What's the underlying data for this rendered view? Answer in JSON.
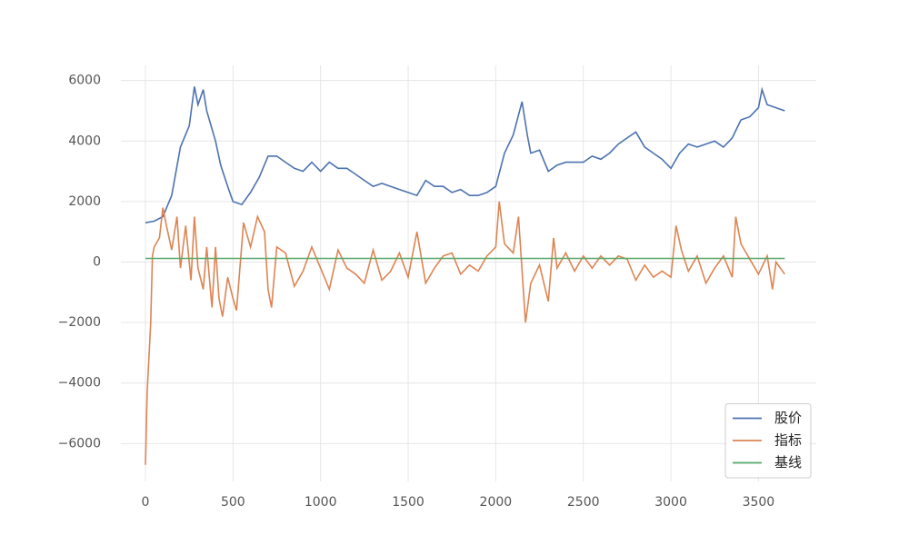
{
  "chart_data": {
    "type": "line",
    "xlim": [
      -140,
      3830
    ],
    "ylim": [
      -7250,
      6500
    ],
    "xticks": [
      0,
      500,
      1000,
      1500,
      2000,
      2500,
      3000,
      3500
    ],
    "yticks": [
      {
        "value": -6000,
        "label": "−6000"
      },
      {
        "value": -4000,
        "label": "−4000"
      },
      {
        "value": -2000,
        "label": "−2000"
      },
      0,
      2000,
      4000,
      6000
    ],
    "grid": true,
    "legend": "lower right",
    "series": [
      {
        "name": "股价",
        "color": "#4c72b0",
        "x": [
          0,
          50,
          100,
          150,
          200,
          250,
          280,
          300,
          330,
          350,
          400,
          430,
          470,
          500,
          550,
          600,
          650,
          700,
          750,
          800,
          850,
          900,
          950,
          1000,
          1050,
          1100,
          1150,
          1200,
          1250,
          1300,
          1350,
          1400,
          1450,
          1500,
          1550,
          1600,
          1650,
          1700,
          1750,
          1800,
          1850,
          1900,
          1950,
          2000,
          2050,
          2100,
          2150,
          2180,
          2200,
          2250,
          2300,
          2350,
          2400,
          2450,
          2500,
          2550,
          2600,
          2650,
          2700,
          2750,
          2800,
          2850,
          2900,
          2950,
          3000,
          3050,
          3100,
          3150,
          3200,
          3250,
          3300,
          3350,
          3400,
          3450,
          3500,
          3520,
          3550,
          3600,
          3650
        ],
        "values": [
          1300,
          1350,
          1500,
          2200,
          3800,
          4500,
          5800,
          5200,
          5700,
          5000,
          4000,
          3200,
          2500,
          2000,
          1900,
          2300,
          2800,
          3500,
          3500,
          3300,
          3100,
          3000,
          3300,
          3000,
          3300,
          3100,
          3100,
          2900,
          2700,
          2500,
          2600,
          2500,
          2400,
          2300,
          2200,
          2700,
          2500,
          2500,
          2300,
          2400,
          2200,
          2200,
          2300,
          2500,
          3600,
          4200,
          5300,
          4200,
          3600,
          3700,
          3000,
          3200,
          3300,
          3300,
          3300,
          3500,
          3400,
          3600,
          3900,
          4100,
          4300,
          3800,
          3600,
          3400,
          3100,
          3600,
          3900,
          3800,
          3900,
          4000,
          3800,
          4100,
          4700,
          4800,
          5100,
          5700,
          5200,
          5100,
          5000
        ]
      },
      {
        "name": "指标",
        "color": "#dd8452",
        "x": [
          0,
          10,
          30,
          40,
          50,
          80,
          100,
          120,
          150,
          180,
          200,
          230,
          260,
          280,
          300,
          330,
          350,
          380,
          400,
          420,
          440,
          470,
          500,
          520,
          560,
          600,
          640,
          680,
          700,
          720,
          750,
          800,
          850,
          900,
          950,
          1000,
          1050,
          1100,
          1150,
          1200,
          1250,
          1300,
          1350,
          1400,
          1450,
          1500,
          1550,
          1600,
          1650,
          1700,
          1750,
          1800,
          1850,
          1900,
          1950,
          2000,
          2020,
          2050,
          2100,
          2130,
          2170,
          2200,
          2250,
          2300,
          2330,
          2350,
          2400,
          2450,
          2500,
          2550,
          2600,
          2650,
          2700,
          2750,
          2800,
          2850,
          2900,
          2950,
          3000,
          3030,
          3060,
          3100,
          3150,
          3200,
          3250,
          3300,
          3350,
          3370,
          3400,
          3450,
          3500,
          3550,
          3580,
          3600,
          3650
        ],
        "values": [
          -6700,
          -4300,
          -2000,
          200,
          500,
          800,
          1800,
          1200,
          400,
          1500,
          -200,
          1200,
          -600,
          1500,
          -200,
          -900,
          500,
          -1500,
          500,
          -1200,
          -1800,
          -500,
          -1200,
          -1600,
          1300,
          500,
          1500,
          1000,
          -900,
          -1500,
          500,
          300,
          -800,
          -300,
          500,
          -200,
          -900,
          400,
          -200,
          -400,
          -700,
          400,
          -600,
          -300,
          300,
          -500,
          1000,
          -700,
          -200,
          200,
          300,
          -400,
          -100,
          -300,
          200,
          500,
          2000,
          600,
          300,
          1500,
          -2000,
          -700,
          -100,
          -1300,
          800,
          -200,
          300,
          -300,
          200,
          -200,
          200,
          -100,
          200,
          100,
          -600,
          -100,
          -500,
          -300,
          -500,
          1200,
          400,
          -300,
          200,
          -700,
          -200,
          200,
          -500,
          1500,
          600,
          100,
          -400,
          200,
          -900,
          0,
          -400
        ]
      },
      {
        "name": "基线",
        "color": "#55a868",
        "x": [
          0,
          3650
        ],
        "values": [
          120,
          120
        ]
      }
    ]
  }
}
